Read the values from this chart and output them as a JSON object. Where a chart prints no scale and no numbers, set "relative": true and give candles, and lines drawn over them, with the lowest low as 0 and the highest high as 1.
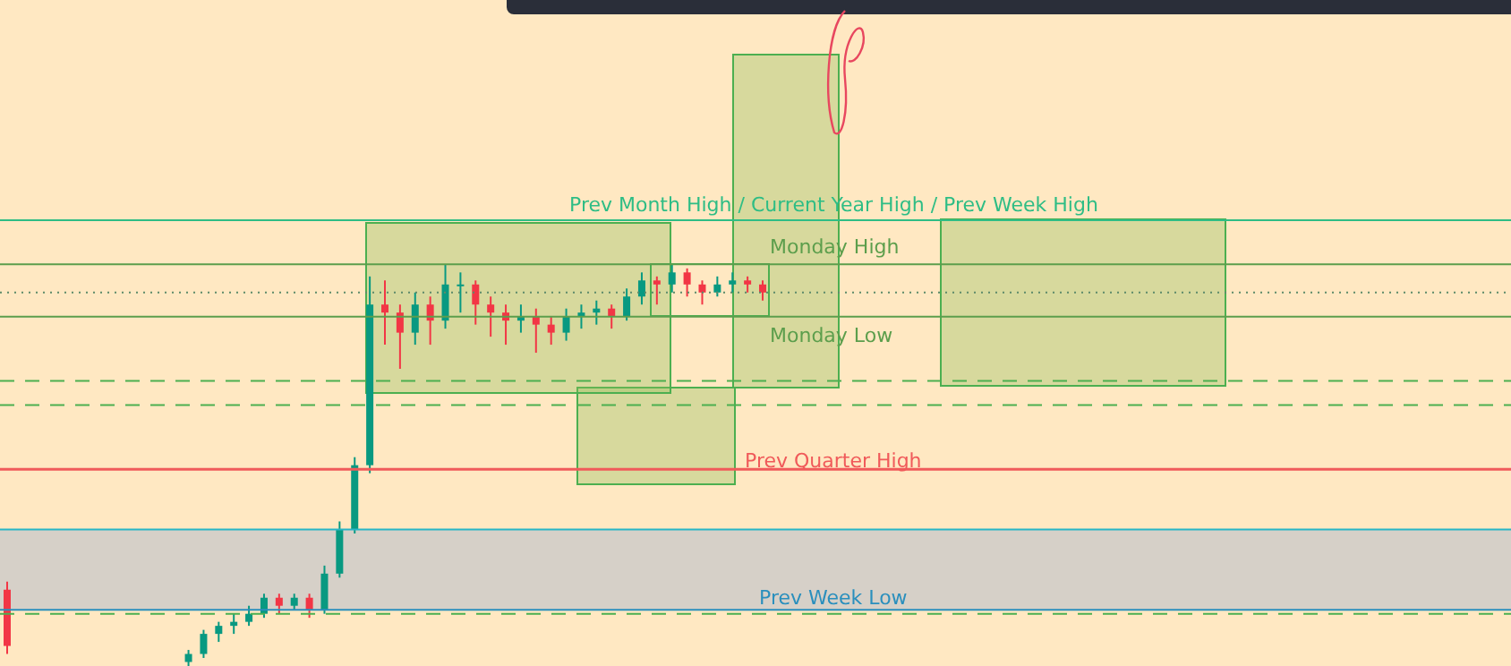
{
  "chart_data": {
    "type": "candlestick",
    "relative": true,
    "categories": [
      null,
      null,
      null,
      null,
      null,
      null,
      null,
      null,
      null,
      null,
      null,
      null,
      null,
      null,
      null,
      null,
      null,
      null,
      null,
      null,
      null,
      null,
      null,
      null,
      null,
      null,
      null,
      null,
      null,
      null,
      null,
      null,
      null,
      null,
      null,
      null,
      null,
      null,
      null,
      null,
      null,
      null,
      null,
      null,
      null,
      null,
      null,
      null,
      null,
      null,
      null,
      null,
      null,
      null,
      null,
      null,
      null,
      null,
      null,
      null,
      null,
      null,
      null,
      null,
      null,
      null,
      null,
      null,
      null,
      null,
      null,
      null,
      null,
      null,
      null,
      null,
      null,
      null,
      null,
      null,
      null,
      null,
      null,
      null,
      null,
      null,
      null,
      null,
      null,
      null,
      null,
      null,
      null,
      null,
      null,
      null,
      null,
      null,
      null,
      null
    ],
    "ohlc": [
      [
        0.19,
        0.21,
        0.03,
        0.05
      ],
      null,
      null,
      null,
      null,
      null,
      null,
      null,
      null,
      null,
      null,
      null,
      [
        0.01,
        0.04,
        0,
        0.03
      ],
      [
        0.03,
        0.09,
        0.02,
        0.08
      ],
      [
        0.08,
        0.11,
        0.06,
        0.1
      ],
      [
        0.1,
        0.13,
        0.08,
        0.11
      ],
      [
        0.11,
        0.15,
        0.1,
        0.13
      ],
      [
        0.13,
        0.18,
        0.12,
        0.17
      ],
      [
        0.17,
        0.18,
        0.13,
        0.15
      ],
      [
        0.15,
        0.18,
        0.14,
        0.17
      ],
      [
        0.17,
        0.18,
        0.12,
        0.14
      ],
      [
        0.14,
        0.25,
        0.13,
        0.23
      ],
      [
        0.23,
        0.36,
        0.22,
        0.34
      ],
      [
        0.34,
        0.52,
        0.33,
        0.5
      ],
      [
        0.5,
        0.97,
        0.48,
        0.9
      ],
      [
        0.9,
        0.96,
        0.8,
        0.88
      ],
      [
        0.88,
        0.9,
        0.74,
        0.83
      ],
      [
        0.83,
        0.93,
        0.8,
        0.9
      ],
      [
        0.9,
        0.92,
        0.8,
        0.86
      ],
      [
        0.86,
        1.0,
        0.84,
        0.95
      ],
      [
        0.95,
        0.98,
        0.88,
        0.95
      ],
      [
        0.95,
        0.96,
        0.85,
        0.9
      ],
      [
        0.9,
        0.92,
        0.82,
        0.88
      ],
      [
        0.88,
        0.9,
        0.8,
        0.86
      ],
      [
        0.86,
        0.9,
        0.83,
        0.87
      ],
      [
        0.87,
        0.89,
        0.78,
        0.85
      ],
      [
        0.85,
        0.87,
        0.8,
        0.83
      ],
      [
        0.83,
        0.89,
        0.81,
        0.87
      ],
      [
        0.87,
        0.9,
        0.84,
        0.88
      ],
      [
        0.88,
        0.91,
        0.85,
        0.89
      ],
      [
        0.89,
        0.9,
        0.84,
        0.87
      ],
      [
        0.87,
        0.94,
        0.86,
        0.92
      ],
      [
        0.92,
        0.98,
        0.9,
        0.96
      ],
      [
        0.96,
        0.97,
        0.9,
        0.95
      ],
      [
        0.95,
        1.0,
        0.93,
        0.98
      ],
      [
        0.98,
        0.99,
        0.92,
        0.95
      ],
      [
        0.95,
        0.96,
        0.9,
        0.93
      ],
      [
        0.93,
        0.97,
        0.92,
        0.95
      ],
      [
        0.95,
        0.98,
        0.93,
        0.96
      ],
      [
        0.96,
        0.97,
        0.93,
        0.95
      ],
      [
        0.95,
        0.96,
        0.91,
        0.93
      ],
      null,
      null,
      null,
      null,
      null,
      null,
      null,
      null,
      null,
      null,
      null,
      null,
      null,
      null,
      null,
      null,
      null,
      null,
      null,
      null,
      null,
      null,
      null,
      null,
      null,
      null,
      null,
      null,
      null,
      null,
      null,
      null,
      null,
      null,
      null,
      null,
      null,
      null,
      null,
      null,
      null,
      null,
      null,
      null,
      null,
      null,
      null,
      null,
      null
    ],
    "colors": [
      "#f23645",
      null,
      null,
      null,
      null,
      null,
      null,
      null,
      null,
      null,
      null,
      null,
      "#089981",
      "#089981",
      "#089981",
      "#089981",
      "#089981",
      "#089981",
      "#f23645",
      "#089981",
      "#f23645",
      "#089981",
      "#089981",
      "#089981",
      "#089981",
      "#f23645",
      "#f23645",
      "#089981",
      "#f23645",
      "#089981",
      "#089981",
      "#f23645",
      "#f23645",
      "#f23645",
      "#089981",
      "#f23645",
      "#f23645",
      "#089981",
      "#089981",
      "#089981",
      "#f23645",
      "#089981",
      "#089981",
      "#f23645",
      "#089981",
      "#f23645",
      "#f23645",
      "#089981",
      "#089981",
      "#f23645",
      "#f23645",
      null,
      null,
      null,
      null,
      null,
      null,
      null,
      null,
      null,
      null,
      null,
      null,
      null,
      null,
      null,
      null,
      null,
      null,
      null,
      null,
      null,
      null,
      null,
      null,
      null,
      null,
      null,
      null,
      null,
      null,
      null,
      null,
      null,
      null,
      null,
      null,
      null,
      null,
      null,
      null,
      null,
      null,
      null,
      null,
      null,
      null,
      null,
      null,
      null
    ],
    "ref_lines": [
      {
        "axis": "y",
        "value": 1.11,
        "label": "Prev Month High / Current Year High / Prev Week High",
        "color": "#2ebd85"
      },
      {
        "axis": "y",
        "value": 1.0,
        "label": "Monday High",
        "color": "#5c9e4c"
      },
      {
        "axis": "y",
        "value": 0.93,
        "color": "#5d8a6a",
        "line_style": "dotted"
      },
      {
        "axis": "y",
        "value": 0.87,
        "label": "Monday Low",
        "color": "#5c9e4c"
      },
      {
        "axis": "y",
        "value": 0.71,
        "color": "#4caf50",
        "line_style": "dashed"
      },
      {
        "axis": "y",
        "value": 0.65,
        "color": "#4caf50",
        "line_style": "dashed"
      },
      {
        "axis": "y",
        "value": 0.49,
        "label": "Prev Quarter High",
        "color": "#f05a5a"
      },
      {
        "axis": "y",
        "value": 0.34,
        "color": "#26b5c6"
      },
      {
        "axis": "y",
        "value": 0.14,
        "label": "Prev Week Low",
        "color": "#2a8fbd"
      },
      {
        "axis": "y",
        "value": 0.13,
        "color": "#4caf50",
        "line_style": "dashed"
      }
    ],
    "bands": [
      {
        "axis": "y",
        "from": 0.14,
        "to": 0.34,
        "color": "#d6d0c8"
      }
    ]
  }
}
